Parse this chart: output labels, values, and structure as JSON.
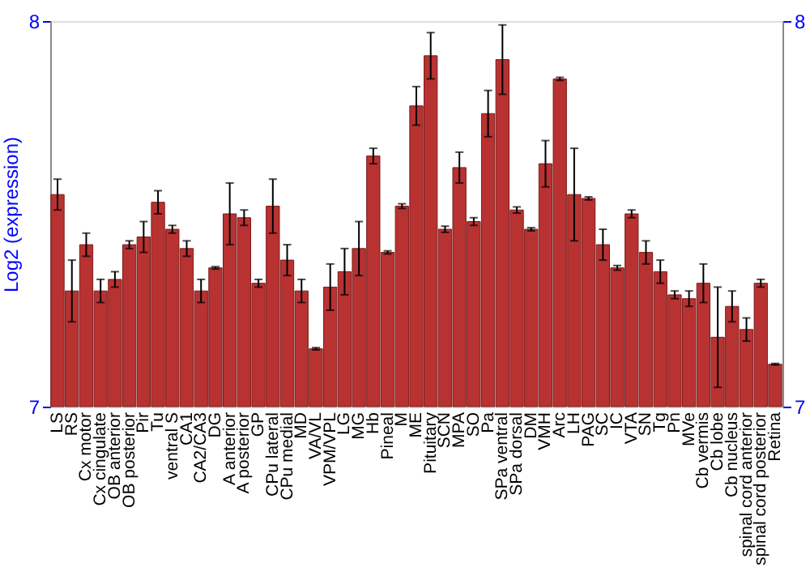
{
  "chart_data": {
    "type": "bar",
    "ylabel": "Log2 (expression)",
    "categories": [
      "LS",
      "RS",
      "Cx motor",
      "Cx cingulate",
      "OB anterior",
      "OB posterior",
      "Pir",
      "Tu",
      "ventral S",
      "CA1",
      "CA2/CA3",
      "DG",
      "A anterior",
      "A posterior",
      "GP",
      "CPu lateral",
      "CPu medial",
      "MD",
      "VA/VL",
      "VPM/VPL",
      "LG",
      "MG",
      "Hb",
      "Pineal",
      "M",
      "ME",
      "Pituitary",
      "SCN",
      "MPA",
      "SO",
      "Pa",
      "SPa ventral",
      "SPa dorsal",
      "DM",
      "VMH",
      "Arc",
      "LH",
      "PAG",
      "SC",
      "IC",
      "VTA",
      "SN",
      "Tg",
      "Pn",
      "MVe",
      "Cb vermis",
      "Cb lobe",
      "Cb nucleus",
      "spinal cord anterior",
      "spinal cord posterior",
      "Retina"
    ],
    "values": [
      7.55,
      7.3,
      7.42,
      7.3,
      7.33,
      7.42,
      7.44,
      7.53,
      7.46,
      7.41,
      7.3,
      7.36,
      7.5,
      7.49,
      7.32,
      7.52,
      7.38,
      7.3,
      7.15,
      7.31,
      7.35,
      7.41,
      7.65,
      7.4,
      7.52,
      7.78,
      7.91,
      7.46,
      7.62,
      7.48,
      7.76,
      7.9,
      7.51,
      7.46,
      7.63,
      7.85,
      7.55,
      7.54,
      7.42,
      7.36,
      7.5,
      7.4,
      7.35,
      7.29,
      7.28,
      7.32,
      7.18,
      7.26,
      7.2,
      7.32,
      7.11
    ],
    "errors": [
      0.04,
      0.08,
      0.03,
      0.03,
      0.02,
      0.01,
      0.04,
      0.03,
      0.01,
      0.02,
      0.03,
      0.003,
      0.08,
      0.02,
      0.01,
      0.07,
      0.04,
      0.03,
      0.003,
      0.06,
      0.06,
      0.07,
      0.02,
      0.004,
      0.006,
      0.05,
      0.06,
      0.008,
      0.04,
      0.01,
      0.06,
      0.09,
      0.008,
      0.004,
      0.06,
      0.004,
      0.12,
      0.004,
      0.04,
      0.006,
      0.01,
      0.03,
      0.03,
      0.01,
      0.02,
      0.05,
      0.13,
      0.04,
      0.03,
      0.01,
      0.002
    ],
    "color": "#b83232",
    "ylim": [
      7,
      8
    ],
    "yticks": [
      7,
      8
    ],
    "y2lim": [
      7,
      8
    ],
    "y2ticks": [
      7,
      8
    ],
    "grid": false
  }
}
